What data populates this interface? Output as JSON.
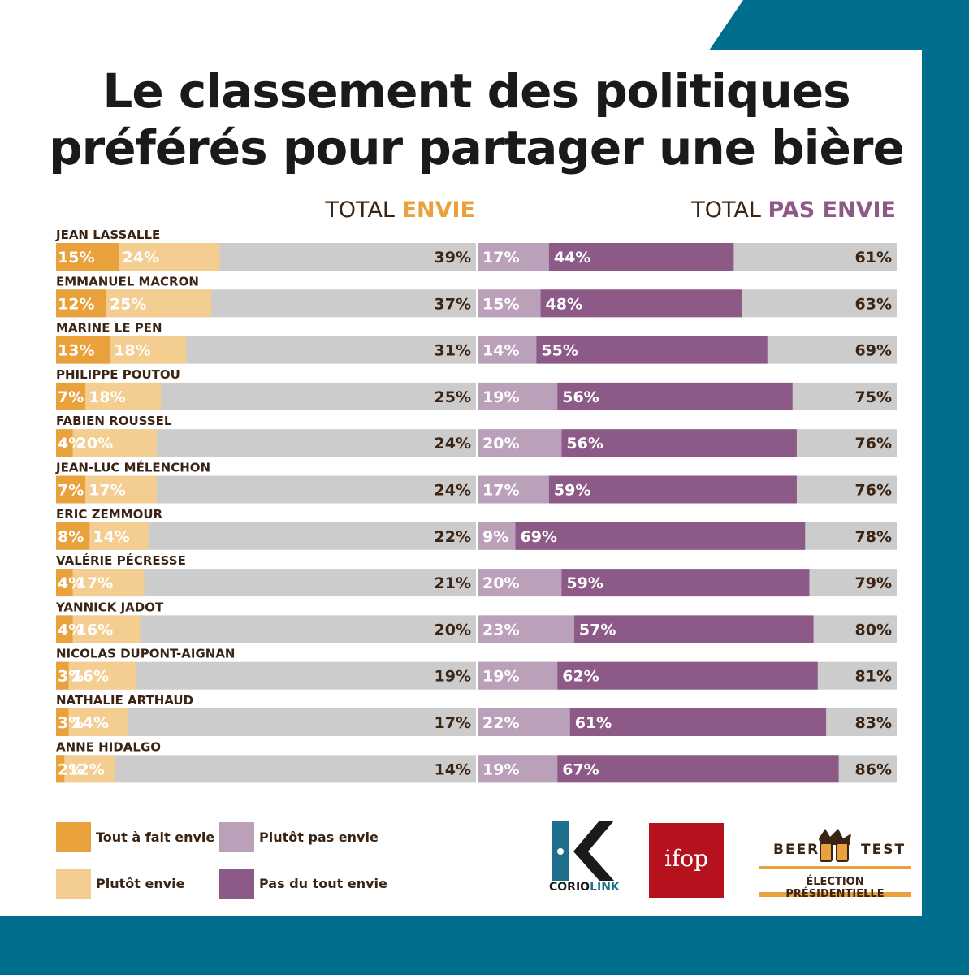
{
  "title_line1": "Le classement des politiques",
  "title_line2": "préférés pour partager une bière",
  "header_left_prefix": "TOTAL ",
  "header_left_emphasis": "ENVIE",
  "header_right_prefix": "TOTAL ",
  "header_right_emphasis": "PAS ENVIE",
  "colors": {
    "tout_a_fait_envie": "#e8a13b",
    "plutot_envie": "#f4cd91",
    "plutot_pas_envie": "#bba0ba",
    "pas_du_tout_envie": "#8d5a88",
    "track": "#cccccc",
    "text_dark": "#3a2414",
    "frame": "#006e8d"
  },
  "legend": {
    "tout_a_fait_envie": "Tout à fait envie",
    "plutot_envie": "Plutôt envie",
    "plutot_pas_envie": "Plutôt pas envie",
    "pas_du_tout_envie": "Pas du tout envie"
  },
  "logos": {
    "coriolink_pre": "CORIO",
    "coriolink_post": "LINK",
    "ifop": "ifop",
    "beer_word1": "BEER",
    "beer_word2": "TEST",
    "beer_sub": "ÉLECTION PRÉSIDENTIELLE"
  },
  "chart_data": {
    "type": "bar",
    "orientation": "horizontal",
    "stacked": true,
    "xlim": [
      0,
      100
    ],
    "unit": "%",
    "categories": [
      "JEAN LASSALLE",
      "EMMANUEL MACRON",
      "MARINE LE PEN",
      "PHILIPPE POUTOU",
      "FABIEN ROUSSEL",
      "JEAN-LUC MÉLENCHON",
      "ERIC ZEMMOUR",
      "VALÉRIE PÉCRESSE",
      "YANNICK JADOT",
      "NICOLAS DUPONT-AIGNAN",
      "NATHALIE ARTHAUD",
      "ANNE HIDALGO"
    ],
    "series": [
      {
        "name": "Tout à fait envie",
        "values": [
          15,
          12,
          13,
          7,
          4,
          7,
          8,
          4,
          4,
          3,
          3,
          2
        ]
      },
      {
        "name": "Plutôt envie",
        "values": [
          24,
          25,
          18,
          18,
          20,
          17,
          14,
          17,
          16,
          16,
          14,
          12
        ]
      },
      {
        "name": "Plutôt pas envie",
        "values": [
          17,
          15,
          14,
          19,
          20,
          17,
          9,
          20,
          23,
          19,
          22,
          19
        ]
      },
      {
        "name": "Pas du tout envie",
        "values": [
          44,
          48,
          55,
          56,
          56,
          59,
          69,
          59,
          57,
          62,
          61,
          67
        ]
      }
    ],
    "total_envie": [
      39,
      37,
      31,
      25,
      24,
      24,
      22,
      21,
      20,
      19,
      17,
      14
    ],
    "total_pas_envie": [
      61,
      63,
      69,
      75,
      76,
      76,
      78,
      79,
      80,
      81,
      83,
      86
    ]
  }
}
